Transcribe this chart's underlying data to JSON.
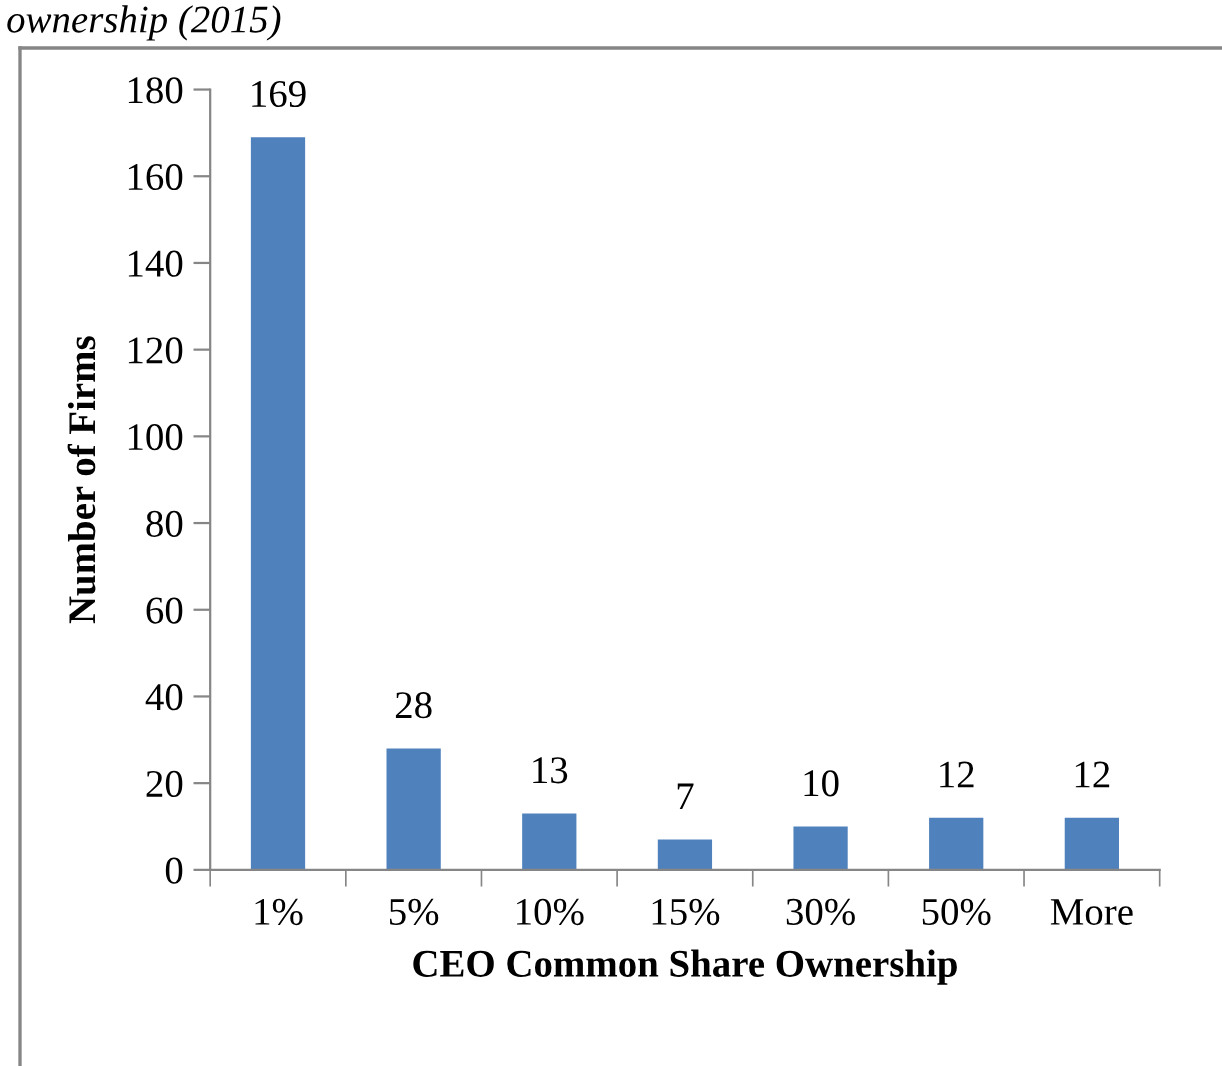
{
  "chart_data": {
    "type": "bar",
    "title": "ownership (2015)",
    "xlabel": "CEO Common Share Ownership",
    "ylabel": "Number of Firms",
    "categories": [
      "1%",
      "5%",
      "10%",
      "15%",
      "30%",
      "50%",
      "More"
    ],
    "values": [
      169,
      28,
      13,
      7,
      10,
      12,
      12
    ],
    "color": "#4f81bd",
    "ylim": [
      0,
      180
    ],
    "yticks": [
      0,
      20,
      40,
      60,
      80,
      100,
      120,
      140,
      160,
      180
    ],
    "data_labels": true,
    "grid": false,
    "legend": false
  }
}
